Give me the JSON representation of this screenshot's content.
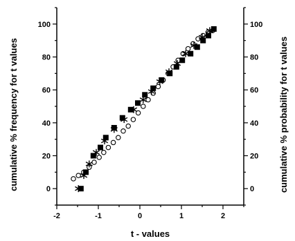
{
  "chart_data": {
    "type": "scatter",
    "title": "",
    "xlabel": "t - values",
    "ylabel_left": "cumulative % frequency for t values",
    "ylabel_right": "cumulative % probability for t values",
    "xlim": [
      -2,
      2.5
    ],
    "ylim": [
      -10,
      110
    ],
    "xticks": [
      -2,
      -1,
      0,
      1,
      2
    ],
    "yticks": [
      0,
      20,
      40,
      60,
      80,
      100
    ],
    "grid": false,
    "legend": "none",
    "series": [
      {
        "marker": "filled-square",
        "x": [
          -1.42,
          -1.3,
          -1.12,
          -0.95,
          -0.82,
          -0.62,
          -0.42,
          -0.22,
          -0.05,
          0.12,
          0.32,
          0.52,
          0.72,
          0.88,
          1.02,
          1.22,
          1.38,
          1.52,
          1.65,
          1.78
        ],
        "y": [
          0,
          10,
          20,
          25,
          31,
          37,
          43,
          48,
          52,
          57,
          61,
          66,
          70,
          74,
          78,
          82,
          86,
          90,
          93,
          97
        ]
      },
      {
        "marker": "open-circle",
        "x": [
          -1.6,
          -1.48,
          -1.35,
          -1.22,
          -1.1,
          -0.98,
          -0.87,
          -0.76,
          -0.64,
          -0.52,
          -0.4,
          -0.28,
          -0.16,
          -0.04,
          0.08,
          0.2,
          0.32,
          0.44,
          0.56,
          0.68,
          0.8,
          0.92,
          1.04,
          1.16,
          1.28,
          1.4,
          1.52,
          1.64,
          1.75
        ],
        "y": [
          6,
          8,
          10,
          13,
          16,
          19,
          22,
          25,
          28,
          31,
          35,
          38,
          42,
          46,
          50,
          54,
          58,
          62,
          66,
          70,
          74,
          78,
          82,
          85,
          88,
          91,
          93,
          95,
          96
        ]
      },
      {
        "marker": "asterisk",
        "x": [
          -1.48,
          -1.35,
          -1.22,
          -1.05,
          -0.85,
          -0.62,
          -0.38,
          -0.15,
          0.08,
          0.28,
          0.48,
          0.7,
          0.9,
          1.1,
          1.3,
          1.5,
          1.68
        ],
        "y": [
          0,
          8,
          15,
          22,
          29,
          36,
          42,
          48,
          54,
          59,
          65,
          71,
          76,
          82,
          87,
          92,
          96
        ]
      }
    ]
  }
}
